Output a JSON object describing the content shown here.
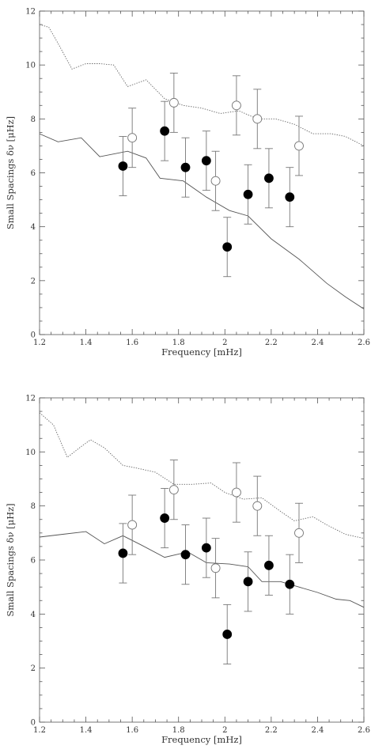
{
  "chart_data": [
    {
      "type": "scatter",
      "xlabel": "Frequency [mHz]",
      "ylabel": "Small Spacings δν [μHz]",
      "xlim": [
        1.2,
        2.6
      ],
      "ylim": [
        0,
        12
      ],
      "xticks": [
        "1.2",
        "1.4",
        "1.6",
        "1.8",
        "2",
        "2.2",
        "2.4",
        "2.6"
      ],
      "yticks": [
        "0",
        "2",
        "4",
        "6",
        "8",
        "10",
        "12"
      ],
      "series": [
        {
          "style": "filled-circles",
          "x": [
            1.56,
            1.74,
            1.83,
            1.92,
            2.01,
            2.1,
            2.19,
            2.28
          ],
          "y": [
            6.25,
            7.55,
            6.2,
            6.45,
            3.25,
            5.2,
            5.8,
            5.1
          ],
          "err": [
            1.1,
            1.1,
            1.1,
            1.1,
            1.1,
            1.1,
            1.1,
            1.1
          ]
        },
        {
          "style": "open-circles",
          "x": [
            1.6,
            1.78,
            1.96,
            2.05,
            2.14,
            2.32
          ],
          "y": [
            7.3,
            8.6,
            5.7,
            8.5,
            8.0,
            7.0
          ],
          "err": [
            1.1,
            1.1,
            1.1,
            1.1,
            1.1,
            1.1
          ]
        },
        {
          "style": "solid-line",
          "x": [
            1.2,
            1.28,
            1.38,
            1.46,
            1.58,
            1.66,
            1.72,
            1.82,
            1.92,
            2.02,
            2.1,
            2.2,
            2.32,
            2.44,
            2.52,
            2.6
          ],
          "y": [
            7.45,
            7.15,
            7.3,
            6.6,
            6.8,
            6.55,
            5.8,
            5.7,
            5.1,
            4.6,
            4.4,
            3.55,
            2.8,
            1.9,
            1.4,
            0.95
          ]
        },
        {
          "style": "dotted-line",
          "x": [
            1.2,
            1.24,
            1.28,
            1.34,
            1.4,
            1.46,
            1.52,
            1.58,
            1.66,
            1.74,
            1.82,
            1.9,
            1.98,
            2.06,
            2.14,
            2.22,
            2.3,
            2.38,
            2.46,
            2.52,
            2.6
          ],
          "y": [
            11.5,
            11.4,
            10.8,
            9.85,
            10.05,
            10.05,
            10.0,
            9.2,
            9.45,
            8.75,
            8.5,
            8.4,
            8.2,
            8.3,
            8.0,
            8.0,
            7.8,
            7.45,
            7.45,
            7.35,
            7.0
          ]
        }
      ]
    },
    {
      "type": "scatter",
      "xlabel": "Frequency [mHz]",
      "ylabel": "Small Spacings δν [μHz]",
      "xlim": [
        1.2,
        2.6
      ],
      "ylim": [
        0,
        12
      ],
      "xticks": [
        "1.2",
        "1.4",
        "1.6",
        "1.8",
        "2",
        "2.2",
        "2.4",
        "2.6"
      ],
      "yticks": [
        "0",
        "2",
        "4",
        "6",
        "8",
        "10",
        "12"
      ],
      "series": [
        {
          "style": "filled-circles",
          "x": [
            1.56,
            1.74,
            1.83,
            1.92,
            2.01,
            2.1,
            2.19,
            2.28
          ],
          "y": [
            6.25,
            7.55,
            6.2,
            6.45,
            3.25,
            5.2,
            5.8,
            5.1
          ],
          "err": [
            1.1,
            1.1,
            1.1,
            1.1,
            1.1,
            1.1,
            1.1,
            1.1
          ]
        },
        {
          "style": "open-circles",
          "x": [
            1.6,
            1.78,
            1.96,
            2.05,
            2.14,
            2.32
          ],
          "y": [
            7.3,
            8.6,
            5.7,
            8.5,
            8.0,
            7.0
          ],
          "err": [
            1.1,
            1.1,
            1.1,
            1.1,
            1.1,
            1.1
          ]
        },
        {
          "style": "solid-line",
          "x": [
            1.2,
            1.3,
            1.4,
            1.48,
            1.56,
            1.64,
            1.74,
            1.84,
            1.92,
            2.02,
            2.1,
            2.16,
            2.24,
            2.32,
            2.4,
            2.48,
            2.54,
            2.6
          ],
          "y": [
            6.85,
            6.95,
            7.05,
            6.6,
            6.9,
            6.55,
            6.1,
            6.3,
            5.9,
            5.85,
            5.75,
            5.2,
            5.2,
            5.0,
            4.8,
            4.55,
            4.5,
            4.25
          ]
        },
        {
          "style": "dotted-line",
          "x": [
            1.2,
            1.26,
            1.32,
            1.38,
            1.42,
            1.48,
            1.56,
            1.62,
            1.7,
            1.78,
            1.86,
            1.94,
            2.0,
            2.08,
            2.16,
            2.24,
            2.3,
            2.38,
            2.44,
            2.52,
            2.6
          ],
          "y": [
            11.45,
            11.0,
            9.8,
            10.2,
            10.45,
            10.15,
            9.5,
            9.4,
            9.25,
            8.8,
            8.8,
            8.85,
            8.5,
            8.25,
            8.3,
            7.8,
            7.45,
            7.6,
            7.3,
            6.95,
            6.8
          ]
        }
      ]
    }
  ]
}
